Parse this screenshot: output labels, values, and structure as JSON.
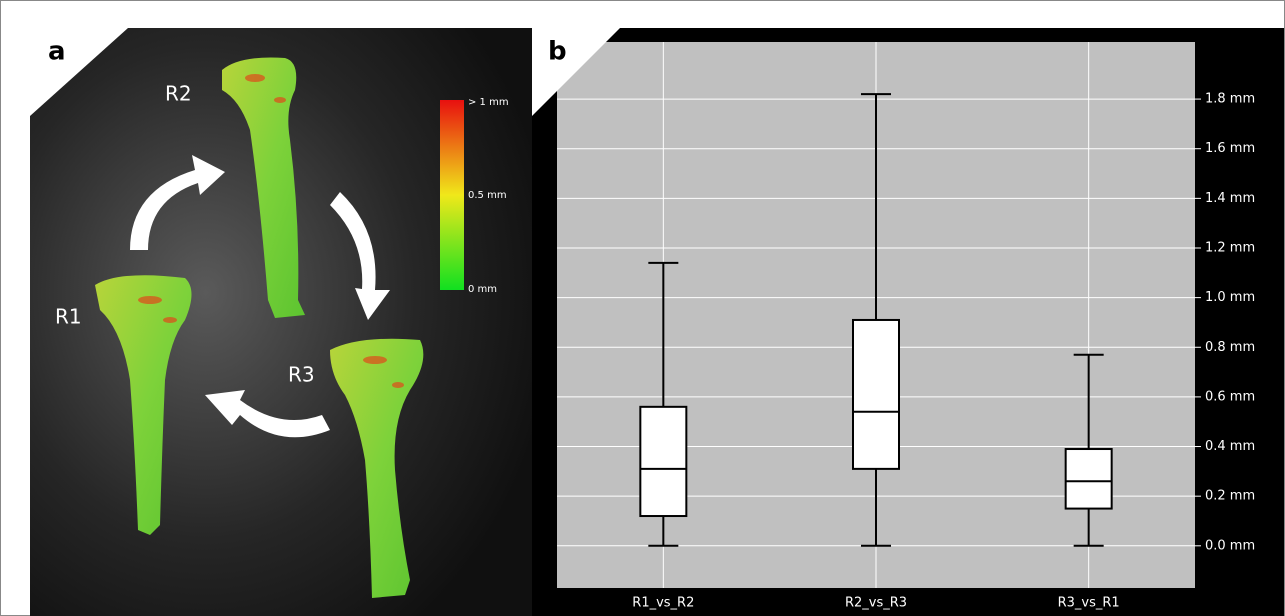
{
  "panel_a": {
    "label": "a",
    "views": [
      "R1",
      "R2",
      "R3"
    ],
    "colorbar": {
      "labels": [
        "> 1 mm",
        "0.5 mm",
        "0 mm"
      ]
    }
  },
  "chart_data": {
    "type": "box",
    "label": "b",
    "categories": [
      "R1_vs_R2",
      "R2_vs_R3",
      "R3_vs_R1"
    ],
    "boxes": [
      {
        "min": 0,
        "q1": 0.12,
        "median": 0.31,
        "q3": 0.56,
        "max": 1.14
      },
      {
        "min": 0,
        "q1": 0.31,
        "median": 0.54,
        "q3": 0.91,
        "max": 1.82
      },
      {
        "min": 0,
        "q1": 0.15,
        "median": 0.26,
        "q3": 0.39,
        "max": 0.77
      }
    ],
    "ylim": [
      -0.17,
      2.03
    ],
    "yticks": [
      {
        "value": 0,
        "label": "0.0 mm"
      },
      {
        "value": 0.2,
        "label": "0.2 mm"
      },
      {
        "value": 0.4,
        "label": "0.4 mm"
      },
      {
        "value": 0.6,
        "label": "0.6 mm"
      },
      {
        "value": 0.8,
        "label": "0.8 mm"
      },
      {
        "value": 1,
        "label": "1.0 mm"
      },
      {
        "value": 1.2,
        "label": "1.2 mm"
      },
      {
        "value": 1.4,
        "label": "1.4 mm"
      },
      {
        "value": 1.6,
        "label": "1.6 mm"
      },
      {
        "value": 1.8,
        "label": "1.8 mm"
      }
    ],
    "grid": true,
    "color": "#ffffff"
  }
}
